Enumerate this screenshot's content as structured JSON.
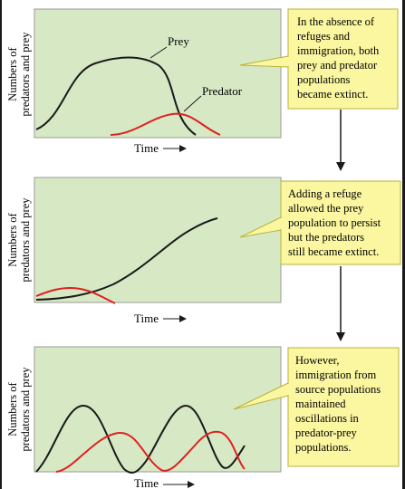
{
  "colors": {
    "plot_bg": "#d6e9c4",
    "plot_border": "#9a9a9a",
    "callout_bg": "#fbf7a0",
    "callout_border": "#b8b23a",
    "prey_line": "#1a1a1a",
    "predator_line": "#e02020",
    "arrow": "#1a1a1a"
  },
  "panels": [
    {
      "ylabel_line1": "Numbers of",
      "ylabel_line2": "predators and prey",
      "xlabel": "Time",
      "prey_label": "Prey",
      "predator_label": "Predator",
      "callout": [
        "In the absence of",
        "refuges and",
        "immigration, both",
        "prey and predator",
        "populations",
        "became extinct."
      ]
    },
    {
      "ylabel_line1": "Numbers of",
      "ylabel_line2": "predators and prey",
      "xlabel": "Time",
      "callout": [
        "Adding a refuge",
        "allowed the prey",
        "population to persist",
        "but the predators",
        "still became extinct."
      ]
    },
    {
      "ylabel_line1": "Numbers of",
      "ylabel_line2": "predators and prey",
      "xlabel": "Time",
      "callout": [
        "However,",
        "immigration from",
        "source populations",
        "maintained",
        "oscillations in",
        "predator-prey",
        "populations."
      ]
    }
  ]
}
